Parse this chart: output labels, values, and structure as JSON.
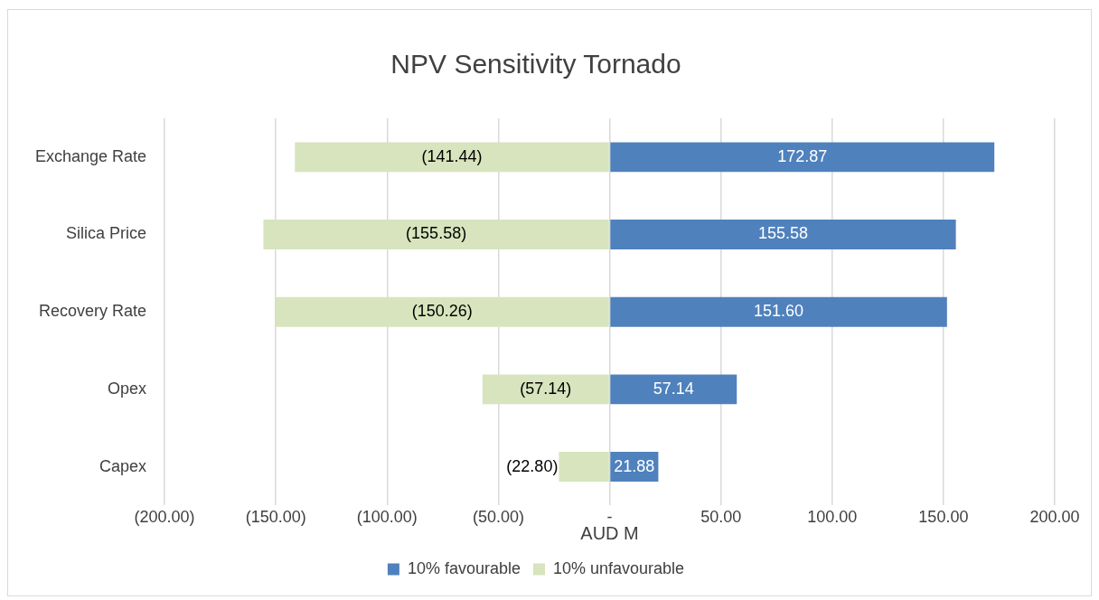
{
  "chart_data": {
    "type": "bar",
    "orientation": "horizontal",
    "stacked": true,
    "title": "NPV Sensitivity Tornado",
    "xlabel": "AUD M",
    "categories": [
      "Exchange Rate",
      "Silica Price",
      "Recovery Rate",
      "Opex",
      "Capex"
    ],
    "series": [
      {
        "name": "10% favourable",
        "color": "#4f81bd",
        "values": [
          172.87,
          155.58,
          151.6,
          57.14,
          21.88
        ],
        "value_labels": [
          "172.87",
          "155.58",
          "151.60",
          "57.14",
          "21.88"
        ]
      },
      {
        "name": "10% unfavourable",
        "color": "#d7e4bd",
        "values": [
          -141.44,
          -155.58,
          -150.26,
          -57.14,
          -22.8
        ],
        "value_labels": [
          "(141.44)",
          "(155.58)",
          "(150.26)",
          "(57.14)",
          "(22.80)"
        ]
      }
    ],
    "xlim": [
      -200,
      200
    ],
    "xticks": [
      {
        "value": -200,
        "label": "(200.00)"
      },
      {
        "value": -150,
        "label": "(150.00)"
      },
      {
        "value": -100,
        "label": "(100.00)"
      },
      {
        "value": -50,
        "label": "(50.00)"
      },
      {
        "value": 0,
        "label": "-"
      },
      {
        "value": 50,
        "label": "50.00"
      },
      {
        "value": 100,
        "label": "100.00"
      },
      {
        "value": 150,
        "label": "150.00"
      },
      {
        "value": 200,
        "label": "200.00"
      }
    ],
    "grid": "x",
    "legend": "bottom"
  }
}
